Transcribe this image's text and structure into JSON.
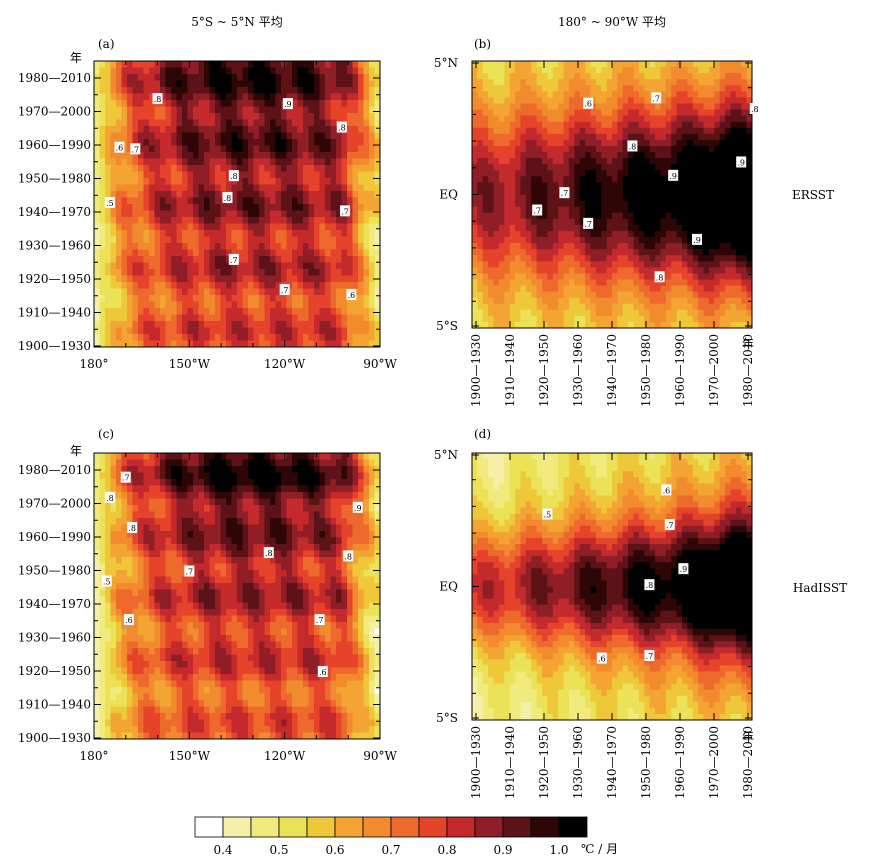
{
  "headers": {
    "left": "5°S ~ 5°N 平均",
    "right": "180° ~ 90°W 平均"
  },
  "row_labels": [
    "ERSST",
    "HadISST"
  ],
  "colorbar": {
    "colors": [
      "#ffffff",
      "#f4f0a8",
      "#f1ea7c",
      "#ece257",
      "#efc83a",
      "#f3a432",
      "#f28a2e",
      "#ed6a2c",
      "#e6432b",
      "#c42a2c",
      "#8f1e26",
      "#5c1216",
      "#2e0606",
      "#000000"
    ],
    "tick_labels": [
      "0.4",
      "0.5",
      "0.6",
      "0.7",
      "0.8",
      "0.9",
      "1.0"
    ],
    "unit": "℃ / 月"
  },
  "chart_data": [
    {
      "type": "heatmap",
      "panel": "(a)",
      "dataset": "ERSST",
      "xlabels": [
        "180°",
        "150°W",
        "120°W",
        "90°W"
      ],
      "xlim": [
        180,
        270
      ],
      "ylabel": "年",
      "ytick_labels": [
        "1900—1930",
        "1910—1940",
        "1920—1950",
        "1930—1960",
        "1940—1970",
        "1950—1980",
        "1960—1990",
        "1970—2000",
        "1980—2010"
      ],
      "contour_labels": [
        {
          "text": ".8",
          "lon": 200,
          "period": 7.4
        },
        {
          "text": ".9",
          "lon": 241,
          "period": 7.25
        },
        {
          "text": ".8",
          "lon": 258,
          "period": 6.55
        },
        {
          "text": ".6",
          "lon": 188,
          "period": 5.95
        },
        {
          "text": ".7",
          "lon": 193,
          "period": 5.9
        },
        {
          "text": ".8",
          "lon": 224,
          "period": 5.1
        },
        {
          "text": ".8",
          "lon": 222,
          "period": 4.45
        },
        {
          "text": ".5",
          "lon": 185,
          "period": 4.3
        },
        {
          "text": ".7",
          "lon": 259,
          "period": 4.05
        },
        {
          "text": ".7",
          "lon": 224,
          "period": 2.6
        },
        {
          "text": ".7",
          "lon": 240,
          "period": 1.7
        },
        {
          "text": ".6",
          "lon": 261,
          "period": 1.55
        }
      ]
    },
    {
      "type": "heatmap",
      "panel": "(b)",
      "dataset": "ERSST",
      "xtick_labels": [
        "1900—1930",
        "1910—1940",
        "1920—1950",
        "1930—1960",
        "1940—1970",
        "1950—1980",
        "1960—1990",
        "1970—2000",
        "1980—2010"
      ],
      "xlabel": "年",
      "ytick_labels": [
        "5°N",
        "EQ",
        "5°S"
      ],
      "ylim": [
        -5,
        5
      ],
      "contour_labels": [
        {
          "text": ".6",
          "period": 3.3,
          "lat": 3.4
        },
        {
          "text": ".7",
          "period": 5.3,
          "lat": 3.6
        },
        {
          "text": ".8",
          "period": 8.2,
          "lat": 3.2
        },
        {
          "text": ".8",
          "period": 4.6,
          "lat": 1.8
        },
        {
          "text": ".9",
          "period": 7.8,
          "lat": 1.2
        },
        {
          "text": ".9",
          "period": 5.8,
          "lat": 0.7
        },
        {
          "text": ".7",
          "period": 2.6,
          "lat": 0.05
        },
        {
          "text": ".7",
          "period": 1.8,
          "lat": -0.6
        },
        {
          "text": ".7",
          "period": 3.3,
          "lat": -1.1
        },
        {
          "text": ".9",
          "period": 6.5,
          "lat": -1.7
        },
        {
          "text": ".8",
          "period": 5.4,
          "lat": -3.1
        }
      ]
    },
    {
      "type": "heatmap",
      "panel": "(c)",
      "dataset": "HadISST",
      "xlabels": [
        "180°",
        "150°W",
        "120°W",
        "90°W"
      ],
      "xlim": [
        180,
        270
      ],
      "ylabel": "年",
      "ytick_labels": [
        "1900—1930",
        "1910—1940",
        "1920—1950",
        "1930—1960",
        "1940—1970",
        "1950—1980",
        "1960—1990",
        "1970—2000",
        "1980—2010"
      ],
      "contour_labels": [
        {
          "text": ".7",
          "lon": 190,
          "period": 7.8
        },
        {
          "text": ".8",
          "lon": 185,
          "period": 7.2
        },
        {
          "text": ".9",
          "lon": 263,
          "period": 6.9
        },
        {
          "text": ".8",
          "lon": 192,
          "period": 6.3
        },
        {
          "text": ".8",
          "lon": 235,
          "period": 5.55
        },
        {
          "text": ".8",
          "lon": 260,
          "period": 5.45
        },
        {
          "text": ".7",
          "lon": 210,
          "period": 5.0
        },
        {
          "text": ".5",
          "lon": 184,
          "period": 4.7
        },
        {
          "text": ".6",
          "lon": 191,
          "period": 3.55
        },
        {
          "text": ".7",
          "lon": 251,
          "period": 3.55
        },
        {
          "text": ".6",
          "lon": 252,
          "period": 2.0
        }
      ]
    },
    {
      "type": "heatmap",
      "panel": "(d)",
      "dataset": "HadISST",
      "xtick_labels": [
        "1900—1930",
        "1910—1940",
        "1920—1950",
        "1930—1960",
        "1940—1970",
        "1950—1980",
        "1960—1990",
        "1970—2000",
        "1980—2010"
      ],
      "xlabel": "年",
      "ytick_labels": [
        "5°N",
        "EQ",
        "5°S"
      ],
      "ylim": [
        -5,
        5
      ],
      "contour_labels": [
        {
          "text": ".5",
          "period": 2.1,
          "lat": 2.7
        },
        {
          "text": ".6",
          "period": 5.6,
          "lat": 3.6
        },
        {
          "text": ".7",
          "period": 5.7,
          "lat": 2.3
        },
        {
          "text": ".9",
          "period": 6.1,
          "lat": 0.65
        },
        {
          "text": ".8",
          "period": 5.1,
          "lat": 0.05
        },
        {
          "text": ".6",
          "period": 3.7,
          "lat": -2.7
        },
        {
          "text": ".7",
          "period": 5.1,
          "lat": -2.6
        }
      ]
    }
  ]
}
